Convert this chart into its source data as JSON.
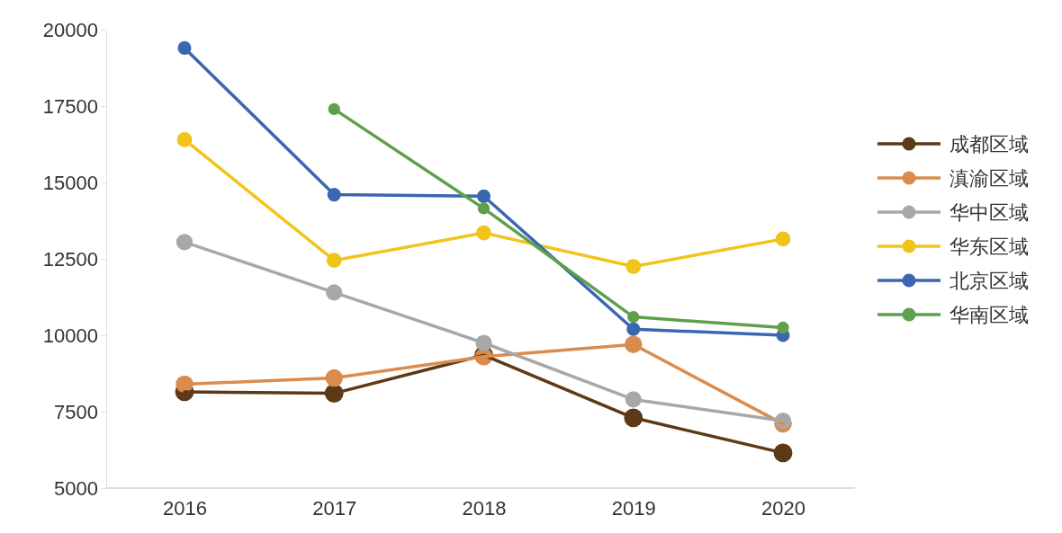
{
  "chart_data": {
    "type": "line",
    "categories": [
      "2016",
      "2017",
      "2018",
      "2019",
      "2020"
    ],
    "series": [
      {
        "name": "成都区域",
        "color": "#5c3a17",
        "values": [
          8150,
          8100,
          9350,
          7300,
          6150
        ]
      },
      {
        "name": "滇渝区域",
        "color": "#d98c4e",
        "values": [
          8400,
          8600,
          9300,
          9700,
          7100
        ]
      },
      {
        "name": "华中区域",
        "color": "#a8a8a8",
        "values": [
          13050,
          11400,
          9750,
          7900,
          7200
        ]
      },
      {
        "name": "华东区域",
        "color": "#f0c419",
        "values": [
          16400,
          12450,
          13350,
          12250,
          13150
        ]
      },
      {
        "name": "北京区域",
        "color": "#3a67b0",
        "values": [
          19400,
          14600,
          14550,
          10200,
          10000
        ]
      },
      {
        "name": "华南区域",
        "color": "#5fa04c",
        "values": [
          null,
          17400,
          14150,
          10600,
          10250
        ]
      }
    ],
    "ylim": [
      5000,
      20000
    ],
    "yticks": [
      5000,
      7500,
      10000,
      12500,
      15000,
      17500,
      20000
    ],
    "grid": false,
    "legend": "right",
    "marker": "circle",
    "line_style": "solid"
  }
}
